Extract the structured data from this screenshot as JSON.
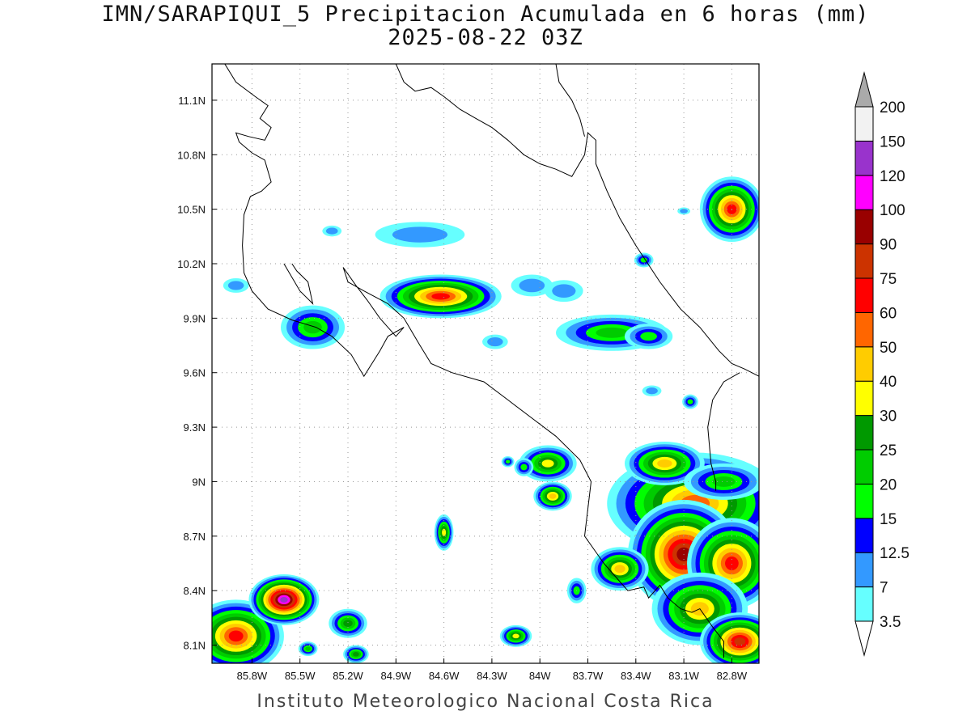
{
  "title": {
    "line1": "IMN/SARAPIQUI_5 Precipitacion Acumulada en 6 horas (mm)",
    "line2": "2025-08-22 03Z"
  },
  "footer": "Instituto Meteorologico Nacional Costa Rica",
  "map": {
    "lon_range": [
      -86.05,
      -82.63
    ],
    "lat_range": [
      8.0,
      11.3
    ],
    "x_ticks": [
      {
        "lon": -85.8,
        "label": "85.8W"
      },
      {
        "lon": -85.5,
        "label": "85.5W"
      },
      {
        "lon": -85.2,
        "label": "85.2W"
      },
      {
        "lon": -84.9,
        "label": "84.9W"
      },
      {
        "lon": -84.6,
        "label": "84.6W"
      },
      {
        "lon": -84.3,
        "label": "84.3W"
      },
      {
        "lon": -84.0,
        "label": "84W"
      },
      {
        "lon": -83.7,
        "label": "83.7W"
      },
      {
        "lon": -83.4,
        "label": "83.4W"
      },
      {
        "lon": -83.1,
        "label": "83.1W"
      },
      {
        "lon": -82.8,
        "label": "82.8W"
      }
    ],
    "y_ticks": [
      {
        "lat": 8.1,
        "label": "8.1N"
      },
      {
        "lat": 8.4,
        "label": "8.4N"
      },
      {
        "lat": 8.7,
        "label": "8.7N"
      },
      {
        "lat": 9.0,
        "label": "9N"
      },
      {
        "lat": 9.3,
        "label": "9.3N"
      },
      {
        "lat": 9.6,
        "label": "9.6N"
      },
      {
        "lat": 9.9,
        "label": "9.9N"
      },
      {
        "lat": 10.2,
        "label": "10.2N"
      },
      {
        "lat": 10.5,
        "label": "10.5N"
      },
      {
        "lat": 10.8,
        "label": "10.8N"
      },
      {
        "lat": 11.1,
        "label": "11.1N"
      }
    ],
    "coastlines": [
      [
        [
          -85.97,
          11.3
        ],
        [
          -85.9,
          11.2
        ],
        [
          -85.78,
          11.12
        ],
        [
          -85.7,
          11.07
        ],
        [
          -85.75,
          11.0
        ],
        [
          -85.68,
          10.95
        ],
        [
          -85.72,
          10.88
        ],
        [
          -85.82,
          10.9
        ],
        [
          -85.9,
          10.92
        ],
        [
          -85.88,
          10.87
        ],
        [
          -85.8,
          10.81
        ],
        [
          -85.72,
          10.77
        ],
        [
          -85.68,
          10.65
        ],
        [
          -85.74,
          10.6
        ],
        [
          -85.81,
          10.57
        ],
        [
          -85.85,
          10.47
        ],
        [
          -85.86,
          10.3
        ],
        [
          -85.85,
          10.15
        ],
        [
          -85.8,
          10.05
        ],
        [
          -85.7,
          9.95
        ],
        [
          -85.55,
          9.89
        ],
        [
          -85.4,
          9.85
        ],
        [
          -85.3,
          9.8
        ],
        [
          -85.18,
          9.7
        ],
        [
          -85.1,
          9.58
        ],
        [
          -85.0,
          9.72
        ],
        [
          -84.95,
          9.8
        ],
        [
          -84.85,
          9.85
        ],
        [
          -84.9,
          9.8
        ],
        [
          -85.0,
          9.9
        ],
        [
          -85.08,
          10.0
        ],
        [
          -85.15,
          10.08
        ],
        [
          -85.23,
          10.18
        ],
        [
          -85.2,
          10.1
        ],
        [
          -85.1,
          10.05
        ],
        [
          -84.95,
          9.98
        ],
        [
          -84.85,
          9.9
        ],
        [
          -84.75,
          9.75
        ],
        [
          -84.68,
          9.65
        ],
        [
          -84.55,
          9.6
        ],
        [
          -84.35,
          9.55
        ],
        [
          -84.2,
          9.45
        ],
        [
          -84.05,
          9.35
        ],
        [
          -83.9,
          9.25
        ],
        [
          -83.75,
          9.12
        ],
        [
          -83.68,
          9.0
        ],
        [
          -83.7,
          8.85
        ],
        [
          -83.72,
          8.7
        ],
        [
          -83.6,
          8.55
        ],
        [
          -83.5,
          8.45
        ],
        [
          -83.45,
          8.4
        ],
        [
          -83.35,
          8.42
        ],
        [
          -83.32,
          8.36
        ],
        [
          -83.25,
          8.43
        ],
        [
          -83.2,
          8.36
        ],
        [
          -83.12,
          8.3
        ],
        [
          -83.05,
          8.28
        ],
        [
          -83.0,
          8.3
        ],
        [
          -82.92,
          8.2
        ],
        [
          -82.85,
          8.12
        ],
        [
          -82.85,
          8.03
        ]
      ],
      [
        [
          -84.9,
          11.3
        ],
        [
          -84.85,
          11.2
        ],
        [
          -84.78,
          11.15
        ],
        [
          -84.68,
          11.17
        ],
        [
          -84.6,
          11.12
        ],
        [
          -84.5,
          11.05
        ],
        [
          -84.4,
          11.0
        ],
        [
          -84.3,
          10.95
        ],
        [
          -84.2,
          10.88
        ],
        [
          -84.1,
          10.8
        ],
        [
          -84.0,
          10.75
        ],
        [
          -83.9,
          10.72
        ],
        [
          -83.8,
          10.68
        ],
        [
          -83.72,
          10.8
        ],
        [
          -83.7,
          10.92
        ],
        [
          -83.65,
          10.88
        ],
        [
          -83.65,
          10.75
        ],
        [
          -83.58,
          10.6
        ],
        [
          -83.5,
          10.45
        ],
        [
          -83.4,
          10.3
        ],
        [
          -83.25,
          10.1
        ],
        [
          -83.12,
          9.95
        ],
        [
          -83.0,
          9.85
        ],
        [
          -82.88,
          9.72
        ],
        [
          -82.8,
          9.65
        ],
        [
          -82.72,
          9.62
        ],
        [
          -82.63,
          9.58
        ]
      ],
      [
        [
          -82.75,
          9.6
        ],
        [
          -82.85,
          9.55
        ],
        [
          -82.92,
          9.45
        ],
        [
          -82.95,
          9.3
        ],
        [
          -82.93,
          9.1
        ],
        [
          -82.9,
          9.0
        ],
        [
          -82.9,
          8.95
        ]
      ],
      [
        [
          -85.6,
          10.2
        ],
        [
          -85.5,
          10.05
        ],
        [
          -85.42,
          9.98
        ],
        [
          -85.45,
          10.1
        ],
        [
          -85.52,
          10.16
        ],
        [
          -85.55,
          10.2
        ]
      ],
      [
        [
          -83.9,
          11.3
        ],
        [
          -83.88,
          11.2
        ],
        [
          -83.8,
          11.1
        ],
        [
          -83.75,
          11.0
        ],
        [
          -83.72,
          10.9
        ]
      ]
    ],
    "precip_cells": [
      {
        "lon": -82.8,
        "lat": 10.5,
        "rx": 0.2,
        "ry": 0.18,
        "max": 60
      },
      {
        "lon": -84.62,
        "lat": 10.02,
        "rx": 0.38,
        "ry": 0.12,
        "max": 70
      },
      {
        "lon": -85.42,
        "lat": 9.85,
        "rx": 0.2,
        "ry": 0.12,
        "max": 20
      },
      {
        "lon": -83.55,
        "lat": 9.82,
        "rx": 0.35,
        "ry": 0.1,
        "max": 20
      },
      {
        "lon": -83.32,
        "lat": 9.8,
        "rx": 0.15,
        "ry": 0.07,
        "max": 15
      },
      {
        "lon": -84.75,
        "lat": 10.36,
        "rx": 0.28,
        "ry": 0.07,
        "max": 12
      },
      {
        "lon": -84.05,
        "lat": 10.08,
        "rx": 0.13,
        "ry": 0.06,
        "max": 12
      },
      {
        "lon": -83.85,
        "lat": 10.05,
        "rx": 0.12,
        "ry": 0.06,
        "max": 12
      },
      {
        "lon": -83.03,
        "lat": 8.88,
        "rx": 0.55,
        "ry": 0.28,
        "max": 50
      },
      {
        "lon": -83.1,
        "lat": 8.6,
        "rx": 0.35,
        "ry": 0.3,
        "max": 90
      },
      {
        "lon": -82.8,
        "lat": 8.55,
        "rx": 0.28,
        "ry": 0.25,
        "max": 65
      },
      {
        "lon": -83.0,
        "lat": 8.3,
        "rx": 0.3,
        "ry": 0.2,
        "max": 45
      },
      {
        "lon": -82.75,
        "lat": 8.12,
        "rx": 0.25,
        "ry": 0.16,
        "max": 75
      },
      {
        "lon": -83.5,
        "lat": 8.52,
        "rx": 0.18,
        "ry": 0.12,
        "max": 45
      },
      {
        "lon": -83.22,
        "lat": 9.1,
        "rx": 0.25,
        "ry": 0.12,
        "max": 40
      },
      {
        "lon": -82.85,
        "lat": 9.0,
        "rx": 0.25,
        "ry": 0.1,
        "max": 22
      },
      {
        "lon": -83.95,
        "lat": 9.1,
        "rx": 0.18,
        "ry": 0.1,
        "max": 35
      },
      {
        "lon": -83.92,
        "lat": 8.92,
        "rx": 0.12,
        "ry": 0.08,
        "max": 40
      },
      {
        "lon": -85.9,
        "lat": 8.15,
        "rx": 0.3,
        "ry": 0.2,
        "max": 65
      },
      {
        "lon": -85.6,
        "lat": 8.35,
        "rx": 0.22,
        "ry": 0.14,
        "max": 130
      },
      {
        "lon": -85.2,
        "lat": 8.22,
        "rx": 0.12,
        "ry": 0.08,
        "max": 28
      },
      {
        "lon": -84.6,
        "lat": 8.72,
        "rx": 0.06,
        "ry": 0.1,
        "max": 35
      },
      {
        "lon": -84.15,
        "lat": 8.15,
        "rx": 0.1,
        "ry": 0.06,
        "max": 35
      },
      {
        "lon": -83.77,
        "lat": 8.4,
        "rx": 0.06,
        "ry": 0.07,
        "max": 15
      },
      {
        "lon": -85.15,
        "lat": 8.05,
        "rx": 0.08,
        "ry": 0.05,
        "max": 25
      },
      {
        "lon": -85.45,
        "lat": 8.08,
        "rx": 0.06,
        "ry": 0.04,
        "max": 20
      },
      {
        "lon": -84.28,
        "lat": 9.77,
        "rx": 0.08,
        "ry": 0.04,
        "max": 8
      },
      {
        "lon": -83.35,
        "lat": 10.22,
        "rx": 0.06,
        "ry": 0.04,
        "max": 15
      },
      {
        "lon": -85.9,
        "lat": 10.08,
        "rx": 0.08,
        "ry": 0.04,
        "max": 8
      },
      {
        "lon": -85.3,
        "lat": 10.38,
        "rx": 0.06,
        "ry": 0.03,
        "max": 12
      },
      {
        "lon": -83.06,
        "lat": 9.44,
        "rx": 0.05,
        "ry": 0.04,
        "max": 15
      },
      {
        "lon": -83.3,
        "lat": 9.5,
        "rx": 0.06,
        "ry": 0.03,
        "max": 12
      },
      {
        "lon": -83.1,
        "lat": 10.49,
        "rx": 0.04,
        "ry": 0.02,
        "max": 8
      },
      {
        "lon": -84.1,
        "lat": 9.08,
        "rx": 0.06,
        "ry": 0.05,
        "max": 15
      },
      {
        "lon": -84.2,
        "lat": 9.11,
        "rx": 0.04,
        "ry": 0.03,
        "max": 15
      }
    ]
  },
  "colorbar": {
    "levels": [
      {
        "label": "3.5",
        "color": "#66ffff"
      },
      {
        "label": "7",
        "color": "#3399ff"
      },
      {
        "label": "12.5",
        "color": "#0000ff"
      },
      {
        "label": "15",
        "color": "#00ff00"
      },
      {
        "label": "20",
        "color": "#00cc00"
      },
      {
        "label": "25",
        "color": "#009900"
      },
      {
        "label": "30",
        "color": "#ffff00"
      },
      {
        "label": "40",
        "color": "#ffcc00"
      },
      {
        "label": "50",
        "color": "#ff6600"
      },
      {
        "label": "60",
        "color": "#ff0000"
      },
      {
        "label": "75",
        "color": "#cc3300"
      },
      {
        "label": "90",
        "color": "#990000"
      },
      {
        "label": "100",
        "color": "#ff00ff"
      },
      {
        "label": "120",
        "color": "#9933cc"
      },
      {
        "label": "150",
        "color": "#f2f2f2"
      },
      {
        "label": "200",
        "color": "#aaaaaa"
      }
    ],
    "thresholds": [
      3.5,
      7,
      12.5,
      15,
      20,
      25,
      30,
      40,
      50,
      60,
      75,
      90,
      100,
      120,
      150,
      200
    ]
  }
}
